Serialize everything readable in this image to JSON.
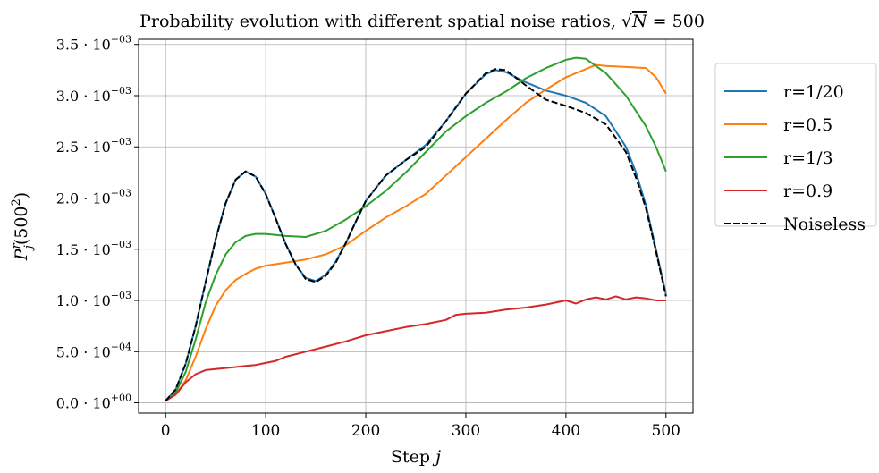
{
  "chart_data": {
    "type": "line",
    "title_prefix": "Probability evolution with different spatial noise ratios, ",
    "title_math_sqrt_symbol": "√",
    "title_math_var": "N",
    "title_math_rest": " = 500",
    "xlabel_prefix": "Step ",
    "xlabel_var": "j",
    "ylabel_main": "P",
    "ylabel_sub": "j",
    "ylabel_sup": "r",
    "ylabel_paren_open": "(500",
    "ylabel_paren_sup": "2",
    "ylabel_paren_close": ")",
    "xlim": [
      -27,
      527
    ],
    "ylim": [
      -0.0001,
      0.00355
    ],
    "xticks": [
      {
        "value": 0,
        "label": "0"
      },
      {
        "value": 100,
        "label": "100"
      },
      {
        "value": 200,
        "label": "200"
      },
      {
        "value": 300,
        "label": "300"
      },
      {
        "value": 400,
        "label": "400"
      },
      {
        "value": 500,
        "label": "500"
      }
    ],
    "yticks": [
      {
        "value": 0.0,
        "mant": "0.0 · 10",
        "exp": "+00"
      },
      {
        "value": 0.0005,
        "mant": "5.0 · 10",
        "exp": "−04"
      },
      {
        "value": 0.001,
        "mant": "1.0 · 10",
        "exp": "−03"
      },
      {
        "value": 0.0015,
        "mant": "1.5 · 10",
        "exp": "−03"
      },
      {
        "value": 0.002,
        "mant": "2.0 · 10",
        "exp": "−03"
      },
      {
        "value": 0.0025,
        "mant": "2.5 · 10",
        "exp": "−03"
      },
      {
        "value": 0.003,
        "mant": "3.0 · 10",
        "exp": "−03"
      },
      {
        "value": 0.0035,
        "mant": "3.5 · 10",
        "exp": "−03"
      }
    ],
    "grid": true,
    "legend_position": "outside right, top",
    "series": [
      {
        "name": "r=1/20",
        "color": "#1f77b4",
        "dash": "solid",
        "x": [
          0,
          10,
          20,
          30,
          40,
          50,
          60,
          70,
          80,
          90,
          100,
          110,
          120,
          130,
          140,
          150,
          160,
          170,
          180,
          190,
          200,
          220,
          240,
          260,
          280,
          300,
          320,
          330,
          340,
          360,
          380,
          400,
          420,
          440,
          460,
          470,
          480,
          490,
          500
        ],
        "y": [
          2e-05,
          0.00013,
          0.00038,
          0.00075,
          0.00118,
          0.0016,
          0.00195,
          0.00218,
          0.00226,
          0.00221,
          0.00204,
          0.0018,
          0.00155,
          0.00135,
          0.00122,
          0.00119,
          0.00125,
          0.00138,
          0.00156,
          0.00177,
          0.00197,
          0.00222,
          0.00237,
          0.00252,
          0.00275,
          0.00302,
          0.00321,
          0.00325,
          0.00323,
          0.00313,
          0.00305,
          0.003,
          0.00293,
          0.0028,
          0.0025,
          0.00225,
          0.00193,
          0.0015,
          0.00106
        ]
      },
      {
        "name": "r=0.5",
        "color": "#ff7f0e",
        "dash": "solid",
        "x": [
          0,
          10,
          20,
          30,
          40,
          50,
          60,
          70,
          80,
          90,
          100,
          120,
          140,
          160,
          180,
          200,
          220,
          240,
          260,
          280,
          300,
          320,
          340,
          360,
          380,
          400,
          420,
          430,
          440,
          460,
          480,
          490,
          500
        ],
        "y": [
          2e-05,
          8e-05,
          0.00022,
          0.00045,
          0.00072,
          0.00095,
          0.0011,
          0.0012,
          0.00126,
          0.00131,
          0.00134,
          0.00137,
          0.0014,
          0.00145,
          0.00154,
          0.00168,
          0.00181,
          0.00192,
          0.00204,
          0.00222,
          0.0024,
          0.00258,
          0.00276,
          0.00293,
          0.00306,
          0.00318,
          0.00326,
          0.0033,
          0.00329,
          0.00328,
          0.00327,
          0.00318,
          0.00302
        ]
      },
      {
        "name": "r=1/3",
        "color": "#2ca02c",
        "dash": "solid",
        "x": [
          0,
          10,
          20,
          30,
          40,
          50,
          60,
          70,
          80,
          90,
          100,
          120,
          140,
          160,
          180,
          200,
          220,
          240,
          260,
          280,
          300,
          320,
          340,
          360,
          380,
          400,
          410,
          420,
          440,
          460,
          480,
          490,
          500
        ],
        "y": [
          2e-05,
          0.0001,
          0.0003,
          0.00062,
          0.00098,
          0.00125,
          0.00145,
          0.00157,
          0.00163,
          0.00165,
          0.00165,
          0.00163,
          0.00162,
          0.00168,
          0.00179,
          0.00192,
          0.00207,
          0.00225,
          0.00245,
          0.00265,
          0.0028,
          0.00293,
          0.00304,
          0.00317,
          0.00327,
          0.00335,
          0.00337,
          0.00336,
          0.00322,
          0.003,
          0.0027,
          0.0025,
          0.00226
        ]
      },
      {
        "name": "r=0.9",
        "color": "#d62728",
        "dash": "solid",
        "x": [
          0,
          10,
          20,
          30,
          40,
          50,
          60,
          70,
          80,
          90,
          100,
          110,
          120,
          140,
          160,
          180,
          200,
          220,
          240,
          260,
          280,
          290,
          300,
          320,
          340,
          360,
          380,
          400,
          410,
          420,
          430,
          440,
          450,
          460,
          470,
          480,
          490,
          500
        ],
        "y": [
          2e-05,
          8e-05,
          0.0002,
          0.00028,
          0.00032,
          0.00033,
          0.00034,
          0.00035,
          0.00036,
          0.00037,
          0.00039,
          0.00041,
          0.00045,
          0.0005,
          0.00055,
          0.0006,
          0.00066,
          0.0007,
          0.00074,
          0.00077,
          0.00081,
          0.00086,
          0.00087,
          0.00088,
          0.00091,
          0.00093,
          0.00096,
          0.001,
          0.00097,
          0.00101,
          0.00103,
          0.00101,
          0.00104,
          0.00101,
          0.00103,
          0.00102,
          0.001,
          0.001
        ]
      },
      {
        "name": "Noiseless",
        "color": "#000000",
        "dash": "dashed",
        "x": [
          0,
          10,
          20,
          30,
          40,
          50,
          60,
          70,
          80,
          90,
          100,
          110,
          120,
          130,
          140,
          150,
          160,
          170,
          180,
          190,
          200,
          220,
          240,
          260,
          280,
          300,
          320,
          330,
          340,
          360,
          380,
          400,
          420,
          440,
          460,
          470,
          480,
          490,
          500
        ],
        "y": [
          2e-05,
          0.00013,
          0.00038,
          0.00075,
          0.00118,
          0.0016,
          0.00195,
          0.00218,
          0.00226,
          0.00221,
          0.00204,
          0.0018,
          0.00155,
          0.00135,
          0.00121,
          0.00118,
          0.00124,
          0.00137,
          0.00156,
          0.00177,
          0.00197,
          0.00222,
          0.00237,
          0.0025,
          0.00275,
          0.00302,
          0.00322,
          0.00326,
          0.00325,
          0.0031,
          0.00296,
          0.0029,
          0.00283,
          0.00272,
          0.00245,
          0.0022,
          0.0019,
          0.00148,
          0.00104
        ]
      }
    ]
  }
}
